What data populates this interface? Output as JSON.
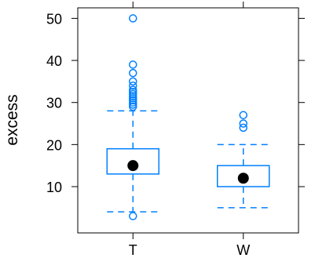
{
  "chart_data": {
    "type": "boxplot",
    "title": "",
    "xlabel": "",
    "ylabel": "excess",
    "ylim": [
      -1,
      52.5
    ],
    "y_ticks": [
      10,
      20,
      30,
      40,
      50
    ],
    "categories": [
      "T",
      "W"
    ],
    "boxes": [
      {
        "category": "T",
        "whisker_low": 4,
        "q1": 13,
        "median": 15,
        "q3": 19,
        "whisker_high": 28,
        "outliers": [
          3,
          29,
          29.5,
          30,
          30.5,
          31,
          31.5,
          32,
          32.5,
          33,
          34,
          35,
          37,
          39,
          50
        ]
      },
      {
        "category": "W",
        "whisker_low": 5,
        "q1": 10,
        "median": 12,
        "q3": 15,
        "whisker_high": 20,
        "outliers": [
          24,
          25,
          27
        ]
      }
    ],
    "grid": false,
    "colors": {
      "box": "#0080ff",
      "median_dot": "#000000",
      "axis": "#000000"
    }
  }
}
